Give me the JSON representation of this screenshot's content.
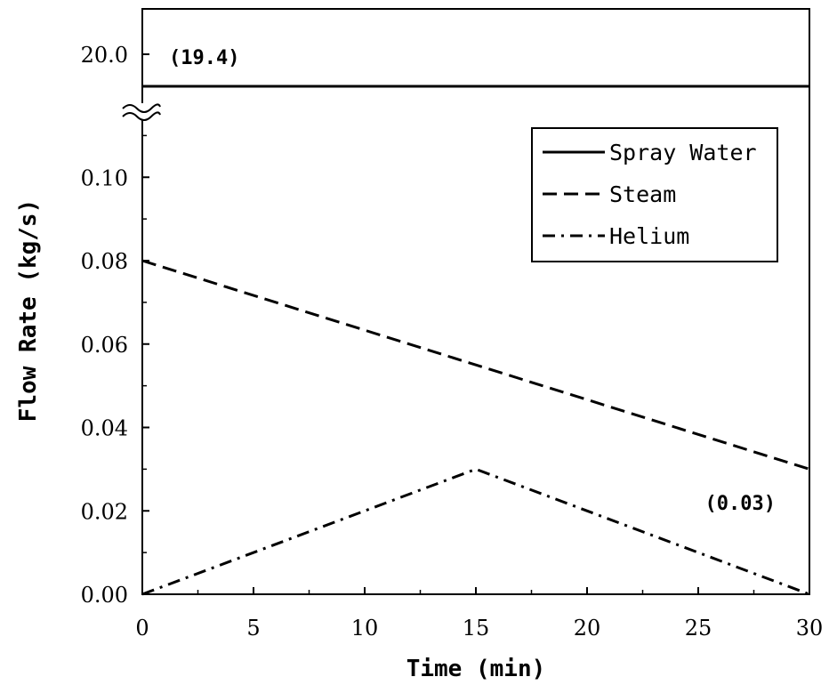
{
  "chart_data": {
    "type": "line",
    "xlabel": "Time (min)",
    "ylabel": "Flow Rate (kg/s)",
    "xlim": [
      0,
      30
    ],
    "x_ticks": [
      "0",
      "5",
      "10",
      "15",
      "20",
      "25",
      "30"
    ],
    "ylim_lower": [
      0,
      0.12
    ],
    "y_ticks_lower": [
      "0.00",
      "0.02",
      "0.04",
      "0.06",
      "0.08",
      "0.10"
    ],
    "y_tick_upper": "20.0",
    "axis_break": true,
    "grid": false,
    "legend_position": "top-right",
    "series": [
      {
        "name": "Spray Water",
        "style": "solid",
        "x": [
          0,
          30
        ],
        "y": [
          19.4,
          19.4
        ]
      },
      {
        "name": "Steam",
        "style": "dashed",
        "x": [
          0,
          15,
          30
        ],
        "y": [
          0.08,
          0.055,
          0.03
        ]
      },
      {
        "name": "Helium",
        "style": "dashdot",
        "x": [
          0,
          15,
          30
        ],
        "y": [
          0.0,
          0.03,
          0.0
        ]
      }
    ],
    "annotations": [
      {
        "text": "(19.4)",
        "x": 0.4,
        "y": 19.4
      },
      {
        "text": "(0.03)",
        "x": 24.5,
        "y": 0.02
      }
    ]
  }
}
